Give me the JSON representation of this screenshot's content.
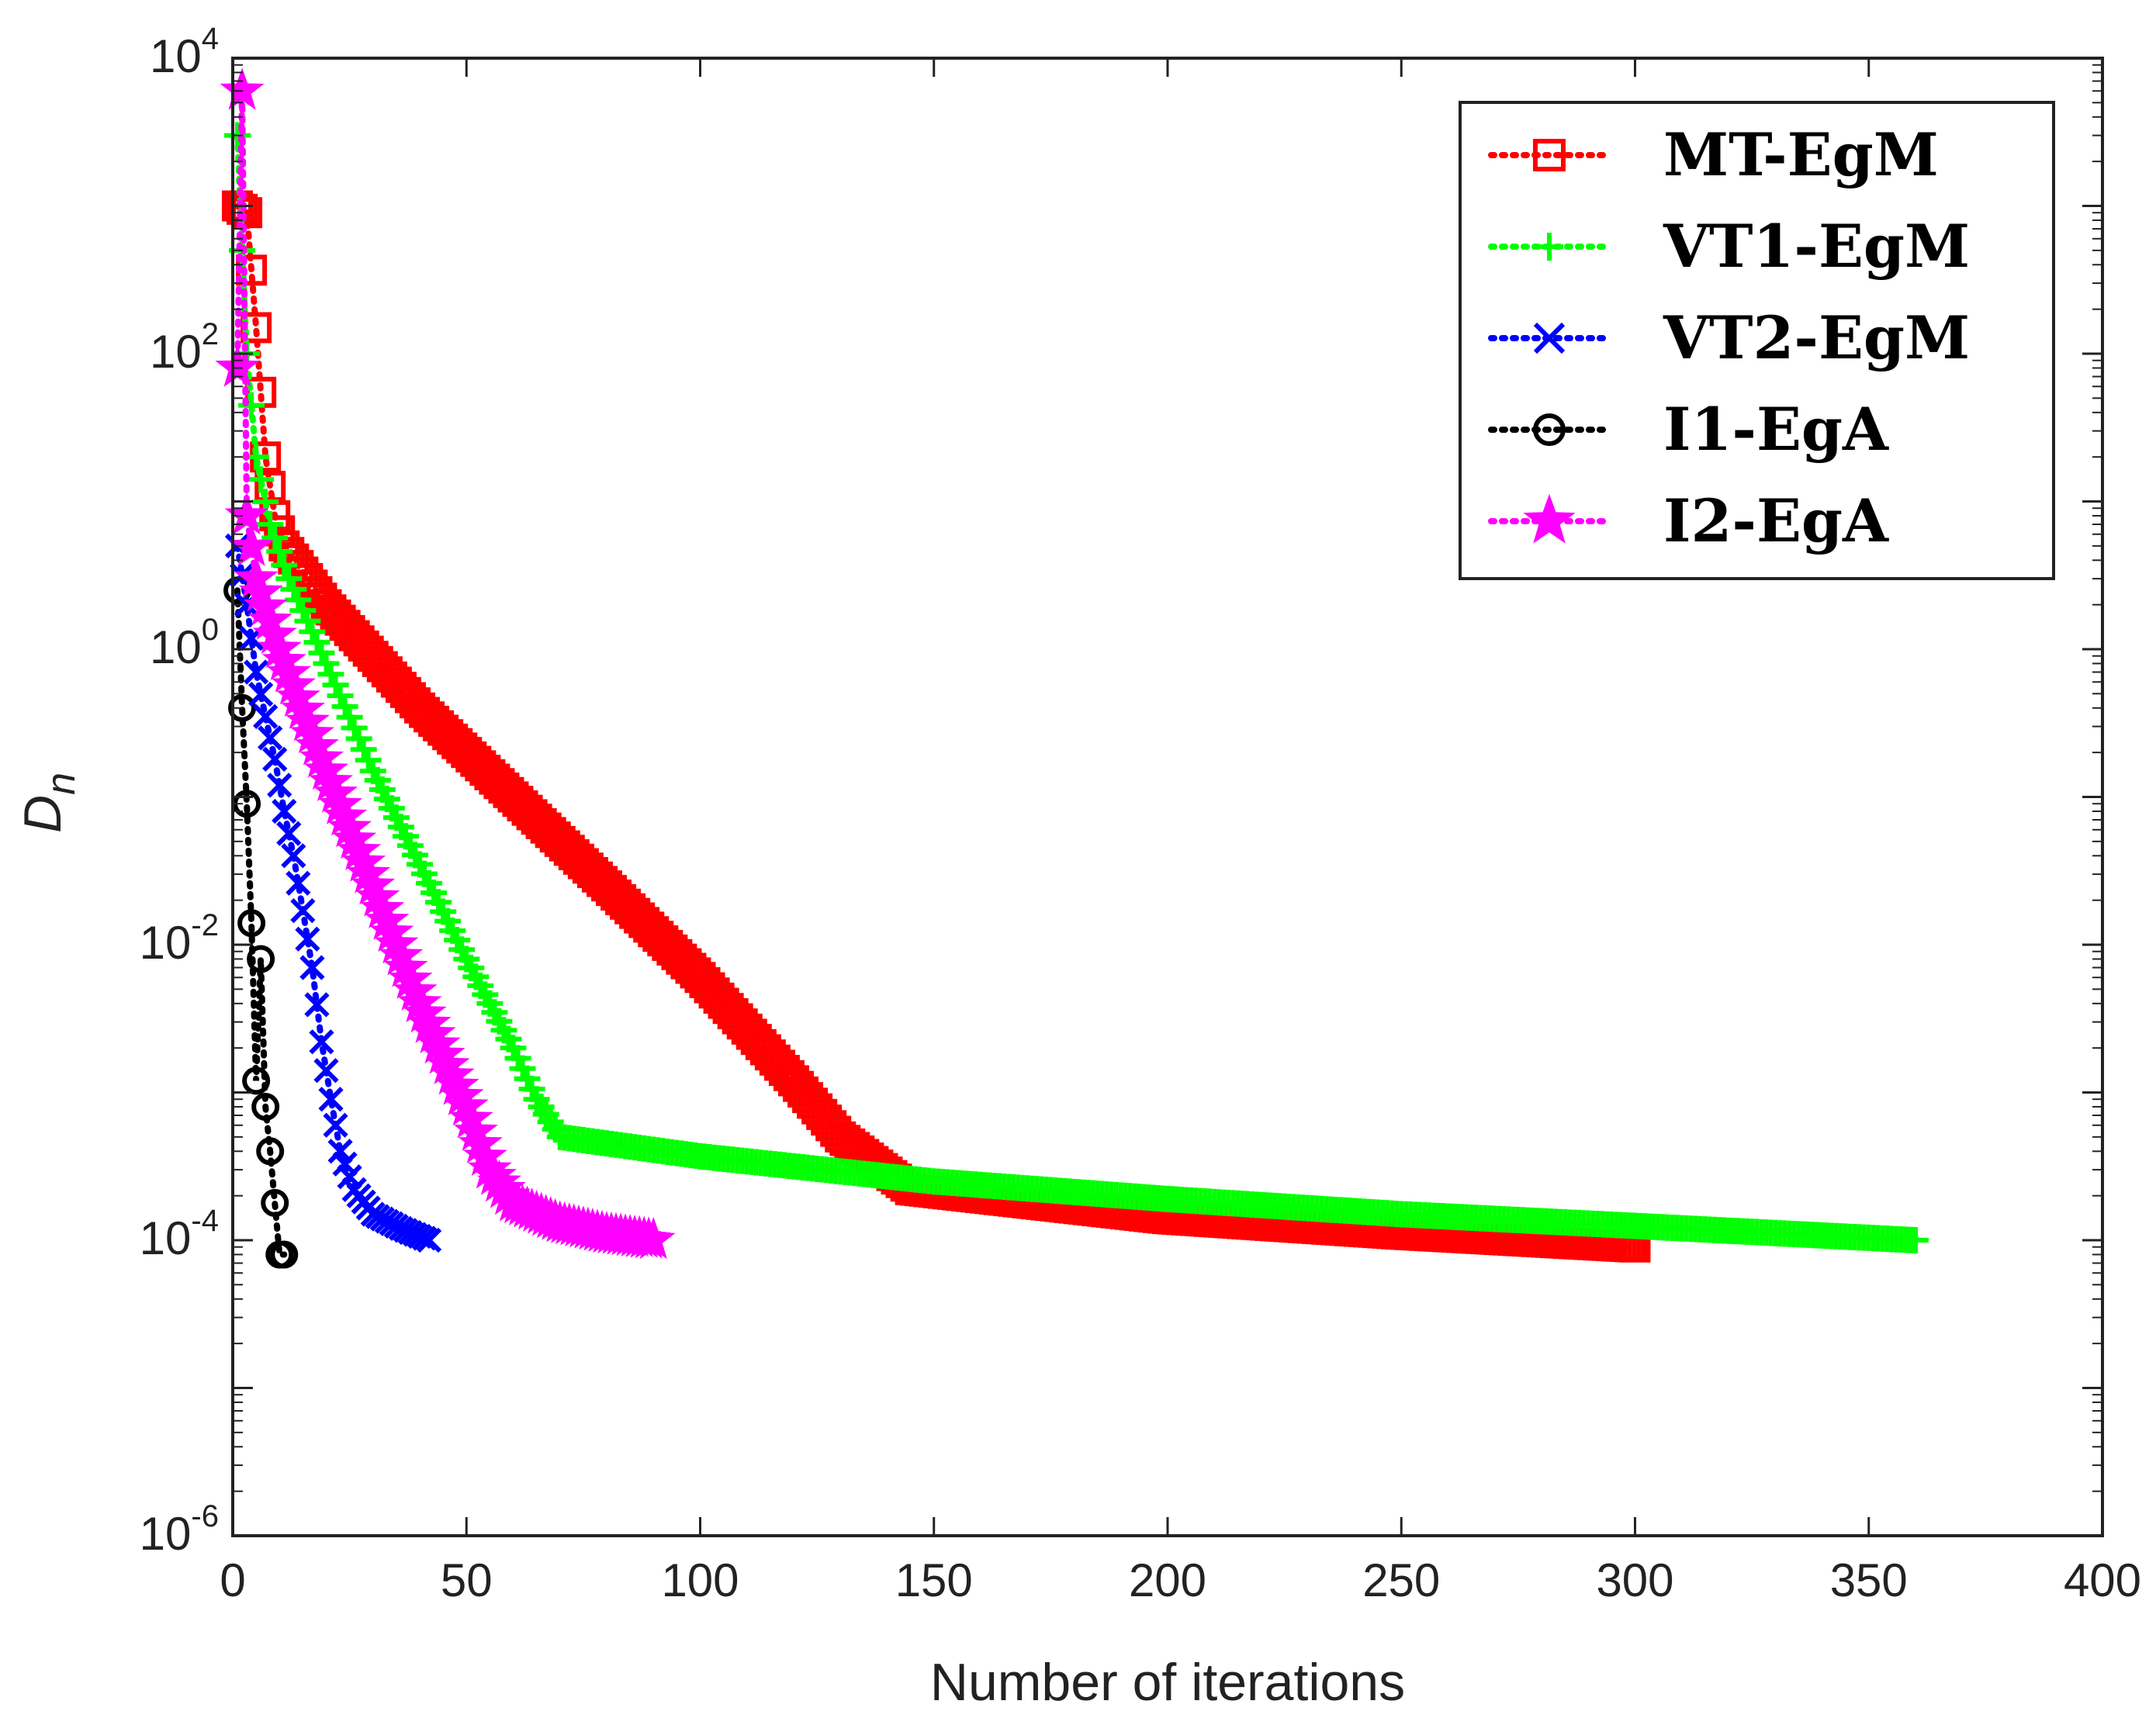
{
  "chart_data": {
    "type": "line",
    "title": "",
    "xlabel": "Number of iterations",
    "ylabel": "D_n",
    "ylabel_main": "D",
    "ylabel_sub": "n",
    "xlim": [
      0,
      400
    ],
    "ylim_log10": [
      -6,
      4
    ],
    "yscale": "log",
    "xticks": [
      0,
      50,
      100,
      150,
      200,
      250,
      300,
      350,
      400
    ],
    "xtick_labels": [
      "0",
      "50",
      "100",
      "150",
      "200",
      "250",
      "300",
      "350",
      "400"
    ],
    "yticks": [
      {
        "base": "10",
        "exp": "-6"
      },
      {
        "base": "10",
        "exp": "-4"
      },
      {
        "base": "10",
        "exp": "-2"
      },
      {
        "base": "10",
        "exp": "0"
      },
      {
        "base": "10",
        "exp": "2"
      },
      {
        "base": "10",
        "exp": "4"
      }
    ],
    "legend_position": "top-right",
    "series": [
      {
        "name": "MT-EgM",
        "color": "#ff0000",
        "marker": "square",
        "n_iterations": 300,
        "knots": [
          [
            1,
            1000
          ],
          [
            3,
            900
          ],
          [
            5,
            150
          ],
          [
            7,
            20
          ],
          [
            9,
            8
          ],
          [
            11,
            5
          ],
          [
            20,
            2
          ],
          [
            40,
            0.4
          ],
          [
            60,
            0.1
          ],
          [
            80,
            0.025
          ],
          [
            100,
            0.006
          ],
          [
            120,
            0.0012
          ],
          [
            130,
            0.0005
          ],
          [
            145,
            0.00022
          ],
          [
            200,
            0.00014
          ],
          [
            250,
            0.00011
          ],
          [
            300,
            9e-05
          ]
        ]
      },
      {
        "name": "VT1-EgM",
        "color": "#00ff00",
        "marker": "plus",
        "n_iterations": 360,
        "knots": [
          [
            1,
            3000
          ],
          [
            2,
            500
          ],
          [
            3,
            100
          ],
          [
            5,
            20
          ],
          [
            8,
            7
          ],
          [
            12,
            3
          ],
          [
            20,
            0.8
          ],
          [
            30,
            0.15
          ],
          [
            40,
            0.035
          ],
          [
            50,
            0.008
          ],
          [
            60,
            0.002
          ],
          [
            65,
            0.0009
          ],
          [
            70,
            0.0005
          ],
          [
            100,
            0.00037
          ],
          [
            150,
            0.00025
          ],
          [
            200,
            0.00019
          ],
          [
            250,
            0.00015
          ],
          [
            300,
            0.000125
          ],
          [
            360,
            0.0001
          ]
        ]
      },
      {
        "name": "VT2-EgM",
        "color": "#0000ff",
        "marker": "x",
        "n_iterations": 42,
        "knots": [
          [
            1,
            5
          ],
          [
            3,
            2
          ],
          [
            5,
            0.7
          ],
          [
            7,
            0.35
          ],
          [
            9,
            0.18
          ],
          [
            11,
            0.08
          ],
          [
            13,
            0.04
          ],
          [
            15,
            0.017
          ],
          [
            17,
            0.007
          ],
          [
            19,
            0.0022
          ],
          [
            21,
            0.0009
          ],
          [
            23,
            0.0004
          ],
          [
            26,
            0.00022
          ],
          [
            30,
            0.00015
          ],
          [
            36,
            0.00012
          ],
          [
            42,
            0.0001
          ]
        ]
      },
      {
        "name": "I1-EgA",
        "color": "#000000",
        "marker": "circle",
        "n_iterations": 11,
        "knots": [
          [
            1,
            2.5
          ],
          [
            2,
            0.4
          ],
          [
            3,
            0.09
          ],
          [
            4,
            0.014
          ],
          [
            5,
            0.0012
          ],
          [
            6,
            0.008
          ],
          [
            7,
            0.0008
          ],
          [
            8,
            0.0004
          ],
          [
            10,
            8e-05
          ]
        ]
      },
      {
        "name": "I2-EgA",
        "color": "#ff00ff",
        "marker": "star",
        "n_iterations": 90,
        "knots": [
          [
            1,
            80
          ],
          [
            2,
            6000
          ],
          [
            3,
            8
          ],
          [
            5,
            3
          ],
          [
            10,
            1
          ],
          [
            20,
            0.15
          ],
          [
            30,
            0.025
          ],
          [
            40,
            0.004
          ],
          [
            50,
            0.0008
          ],
          [
            55,
            0.0003
          ],
          [
            60,
            0.00018
          ],
          [
            70,
            0.00013
          ],
          [
            80,
            0.00011
          ],
          [
            90,
            0.0001
          ]
        ]
      }
    ]
  }
}
